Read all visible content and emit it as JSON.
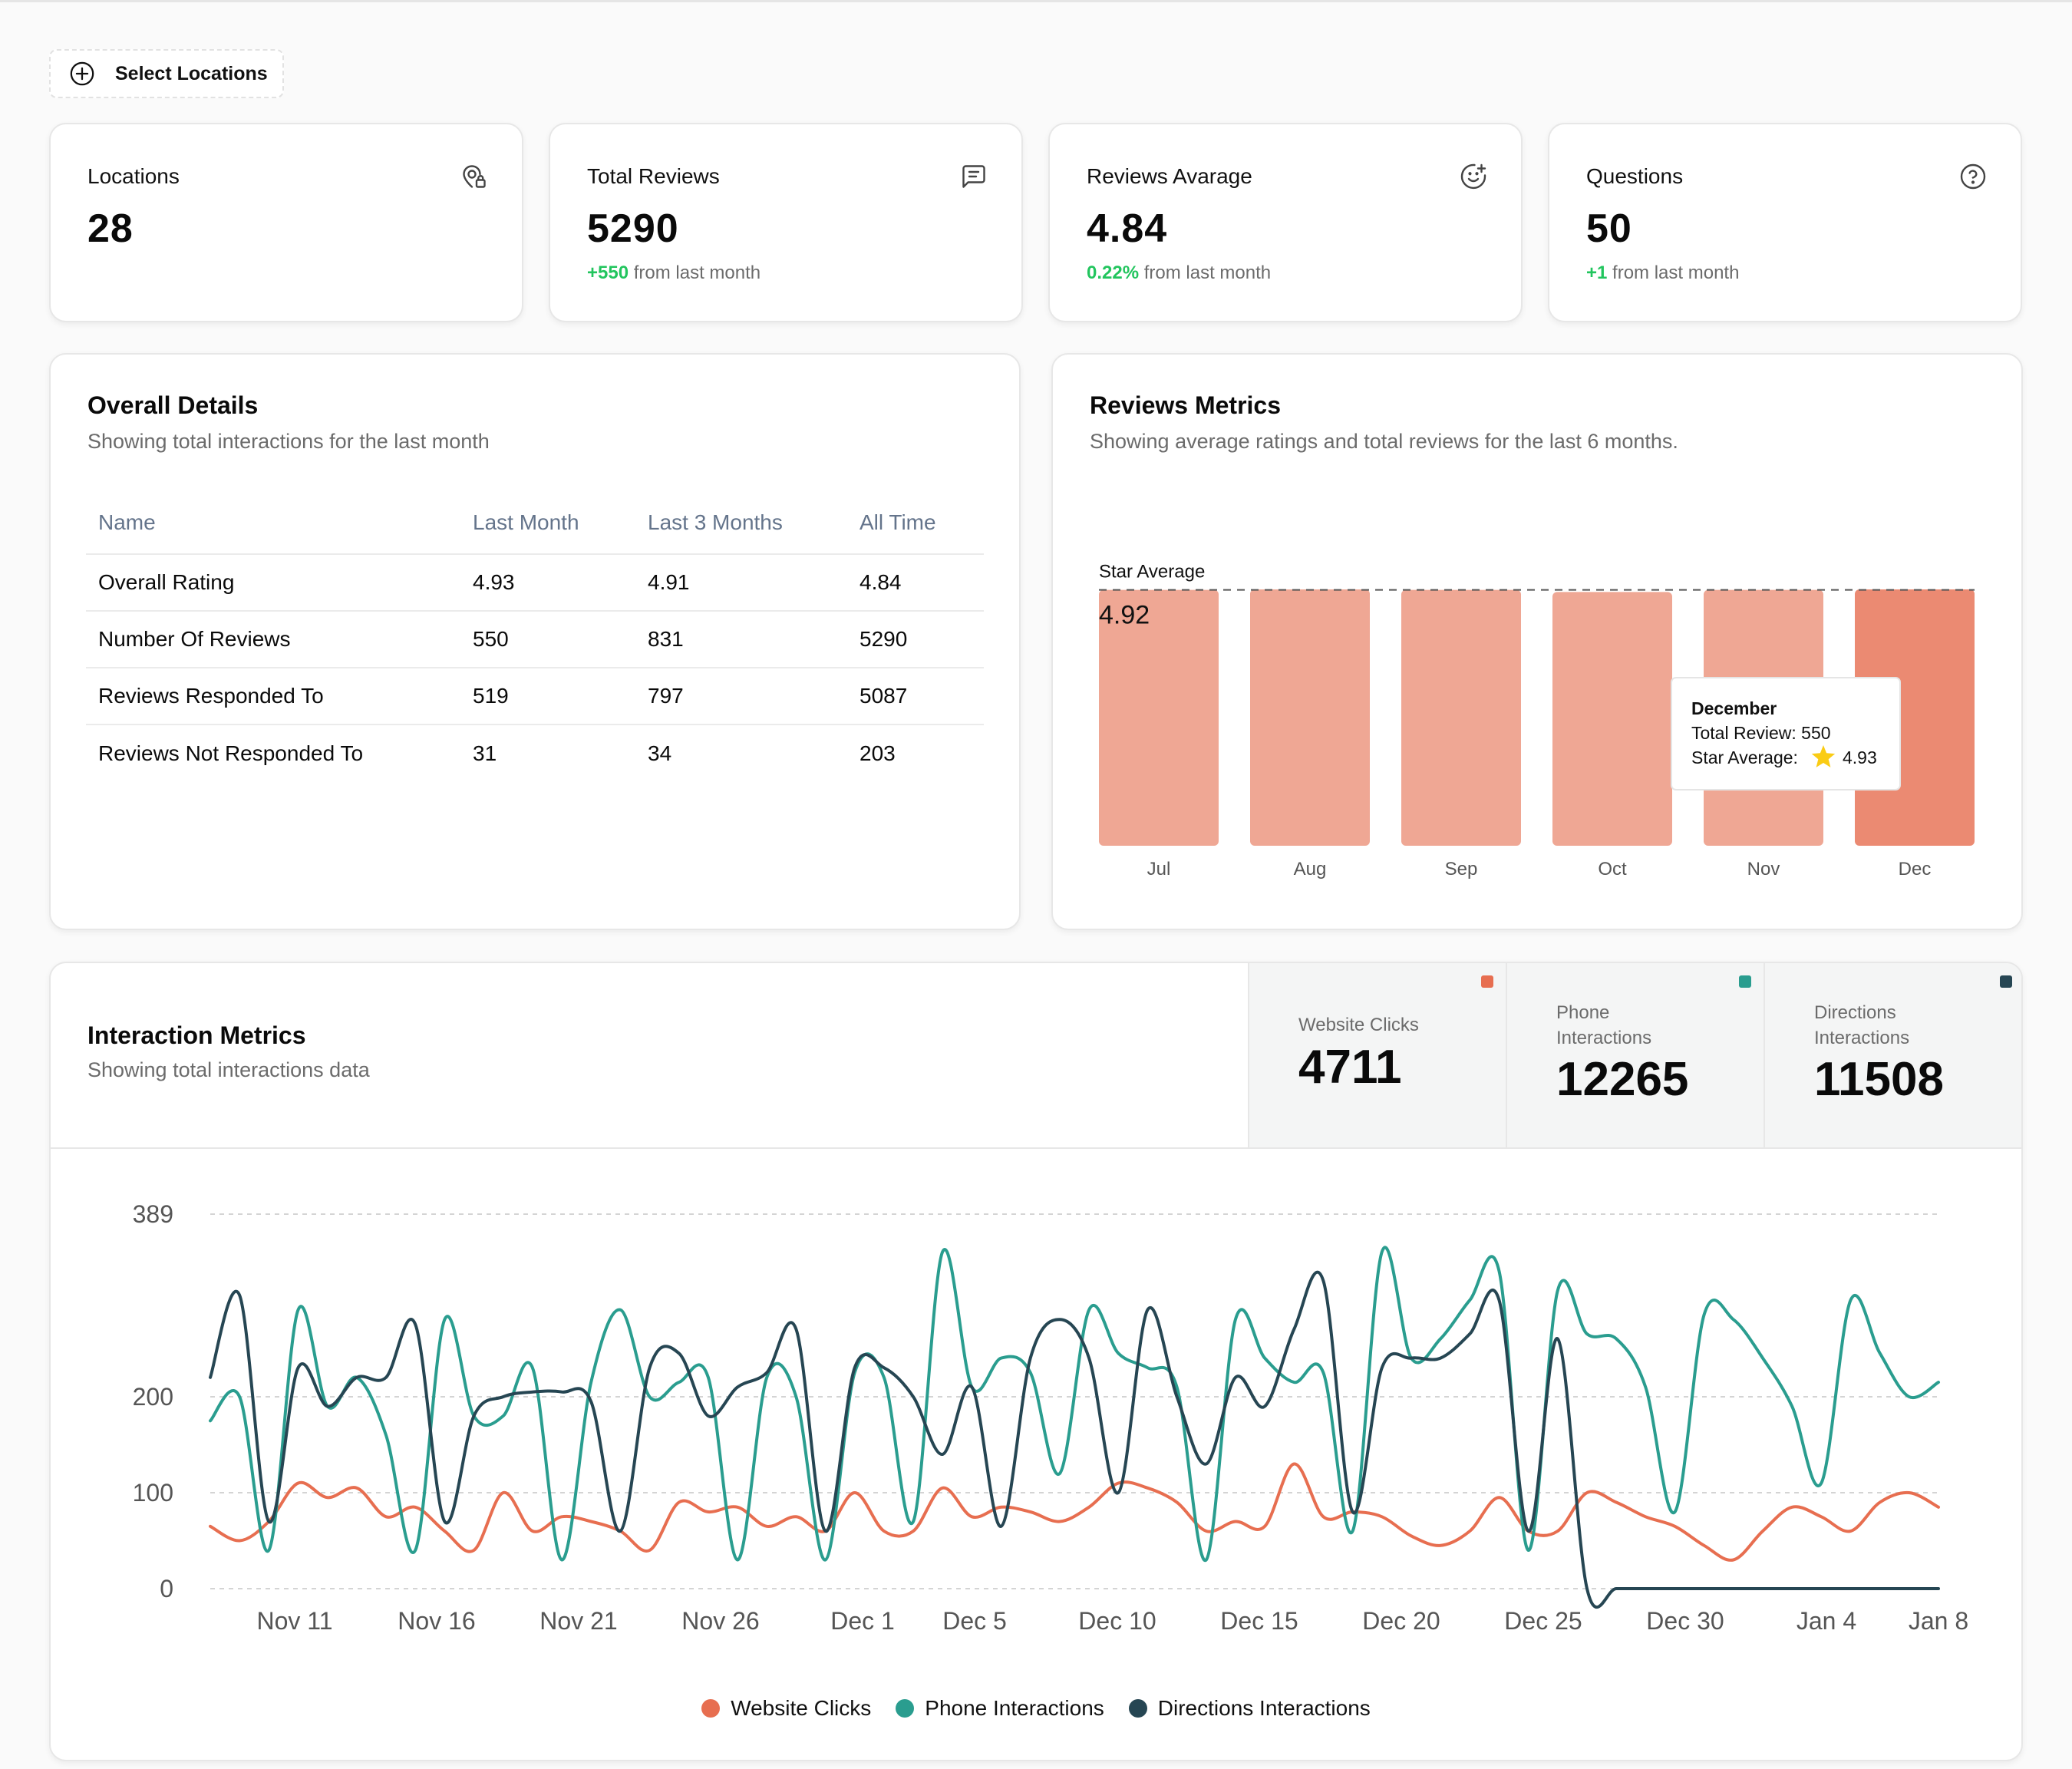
{
  "toolbar": {
    "select_locations": "Select Locations"
  },
  "stats": [
    {
      "label": "Locations",
      "value": "28",
      "delta_value": "",
      "delta_text": "",
      "icon": "map-pin-icon"
    },
    {
      "label": "Total Reviews",
      "value": "5290",
      "delta_value": "+550",
      "delta_text": " from last month",
      "icon": "message-icon"
    },
    {
      "label": "Reviews Avarage",
      "value": "4.84",
      "delta_value": "0.22%",
      "delta_text": " from last month",
      "icon": "smile-plus-icon"
    },
    {
      "label": "Questions",
      "value": "50",
      "delta_value": "+1",
      "delta_text": " from last month",
      "icon": "help-circle-icon"
    }
  ],
  "overall": {
    "title": "Overall Details",
    "subtitle": "Showing total interactions for the last month",
    "headers": [
      "Name",
      "Last Month",
      "Last 3 Months",
      "All Time"
    ],
    "rows": [
      [
        "Overall Rating",
        "4.93",
        "4.91",
        "4.84"
      ],
      [
        "Number Of Reviews",
        "550",
        "831",
        "5290"
      ],
      [
        "Reviews Responded To",
        "519",
        "797",
        "5087"
      ],
      [
        "Reviews Not Responded To",
        "31",
        "34",
        "203"
      ]
    ]
  },
  "reviews_metrics": {
    "title": "Reviews Metrics",
    "subtitle": "Showing average ratings and total reviews for the last 6 months.",
    "reference_label": "Star Average",
    "reference_value": "4.92",
    "tooltip": {
      "title": "December",
      "total_line": "Total Review: 550",
      "star_label": "Star Average:",
      "star_icon": "star-icon",
      "star_value": "4.93"
    }
  },
  "interaction": {
    "title": "Interaction Metrics",
    "subtitle": "Showing total interactions data",
    "metrics": [
      {
        "label_lines": [
          "Website Clicks"
        ],
        "value": "4711",
        "color": "#e76e50"
      },
      {
        "label_lines": [
          "Phone",
          "Interactions"
        ],
        "value": "12265",
        "color": "#2a9d8f"
      },
      {
        "label_lines": [
          "Directions",
          "Interactions"
        ],
        "value": "11508",
        "color": "#264653"
      }
    ]
  },
  "colors": {
    "bar": "#efa794",
    "bar_active": "#eb8a72",
    "website": "#e76e50",
    "phone": "#2a9d8f",
    "directions": "#264653",
    "positive": "#22c55e"
  },
  "chart_data": [
    {
      "type": "bar",
      "categories": [
        "Jul",
        "Aug",
        "Sep",
        "Oct",
        "Nov",
        "Dec"
      ],
      "values": [
        4.92,
        4.93,
        4.92,
        4.88,
        4.92,
        4.93
      ],
      "ylim": [
        0,
        4.93
      ],
      "reference_line": 4.92,
      "highlight": "Dec"
    },
    {
      "type": "line",
      "x_ticks": [
        "Nov 11",
        "Nov 16",
        "Nov 21",
        "Nov 26",
        "Dec 1",
        "Dec 5",
        "Dec 10",
        "Dec 15",
        "Dec 20",
        "Dec 25",
        "Dec 30",
        "Jan 4",
        "Jan 8"
      ],
      "y_ticks": [
        0,
        100,
        200,
        389
      ],
      "ylim": [
        0,
        389
      ],
      "grid": true,
      "legend": "bottom-center",
      "series": [
        {
          "name": "Website Clicks",
          "color": "#e76e50",
          "values": [
            65,
            50,
            70,
            110,
            95,
            105,
            75,
            85,
            60,
            40,
            100,
            60,
            75,
            70,
            60,
            40,
            90,
            80,
            85,
            65,
            75,
            60,
            100,
            60,
            60,
            105,
            75,
            85,
            80,
            70,
            85,
            110,
            105,
            90,
            60,
            70,
            65,
            130,
            75,
            80,
            75,
            55,
            45,
            60,
            95,
            60,
            60,
            100,
            90,
            75,
            65,
            45,
            30,
            60,
            85,
            75,
            60,
            90,
            100,
            85
          ]
        },
        {
          "name": "Phone Interactions",
          "color": "#2a9d8f",
          "values": [
            175,
            200,
            40,
            290,
            190,
            220,
            160,
            40,
            280,
            180,
            180,
            230,
            30,
            215,
            290,
            200,
            215,
            220,
            30,
            220,
            200,
            30,
            225,
            220,
            70,
            350,
            210,
            240,
            225,
            120,
            290,
            245,
            230,
            210,
            30,
            280,
            240,
            215,
            225,
            60,
            350,
            240,
            260,
            300,
            330,
            40,
            310,
            265,
            260,
            210,
            80,
            285,
            280,
            240,
            190,
            110,
            300,
            245,
            200,
            215
          ]
        },
        {
          "name": "Directions Interactions",
          "color": "#264653",
          "values": [
            220,
            305,
            70,
            230,
            190,
            220,
            220,
            275,
            70,
            180,
            200,
            205,
            205,
            195,
            60,
            230,
            245,
            180,
            210,
            225,
            270,
            60,
            230,
            230,
            200,
            140,
            210,
            65,
            240,
            280,
            240,
            100,
            290,
            200,
            130,
            220,
            190,
            270,
            320,
            80,
            230,
            240,
            240,
            265,
            300,
            60,
            260,
            0,
            0,
            0,
            0,
            0,
            0,
            0,
            0,
            0,
            0,
            0,
            0,
            0
          ]
        }
      ]
    }
  ]
}
